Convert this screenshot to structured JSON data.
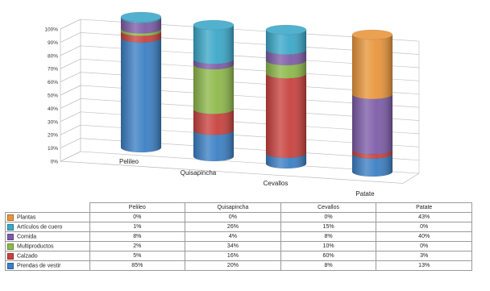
{
  "chart_data": {
    "type": "bar",
    "stacked": true,
    "percent_stacked": true,
    "three_d": "cylinder",
    "categories": [
      "Pelileo",
      "Quisapincha",
      "Cevallos",
      "Patate"
    ],
    "series": [
      {
        "name": "Prendas de vestir",
        "color": "#3b7fc4",
        "values": [
          85,
          20,
          8,
          13
        ]
      },
      {
        "name": "Calzado",
        "color": "#c8413d",
        "values": [
          5,
          16,
          60,
          3
        ]
      },
      {
        "name": "Multiproductos",
        "color": "#8db84a",
        "values": [
          2,
          34,
          10,
          0
        ]
      },
      {
        "name": "Comida",
        "color": "#7d5ca8",
        "values": [
          8,
          4,
          8,
          40
        ]
      },
      {
        "name": "Artículos de cuero",
        "color": "#3aa7c8",
        "values": [
          1,
          26,
          15,
          0
        ]
      },
      {
        "name": "Plantas",
        "color": "#e8953a",
        "values": [
          0,
          0,
          0,
          43
        ]
      }
    ],
    "table_rows": [
      {
        "label": "Plantas",
        "cells": [
          "0%",
          "0%",
          "0%",
          "43%"
        ]
      },
      {
        "label": "Artículos de cuero",
        "cells": [
          "1%",
          "26%",
          "15%",
          "0%"
        ]
      },
      {
        "label": "Comida",
        "cells": [
          "8%",
          "4%",
          "8%",
          "40%"
        ]
      },
      {
        "label": "Multiproductos",
        "cells": [
          "2%",
          "34%",
          "10%",
          "0%"
        ]
      },
      {
        "label": "Calzado",
        "cells": [
          "5%",
          "16%",
          "60%",
          "3%"
        ]
      },
      {
        "label": "Prendas de vestir",
        "cells": [
          "85%",
          "20%",
          "8%",
          "13%"
        ]
      }
    ],
    "yticks": [
      "0%",
      "10%",
      "20%",
      "30%",
      "40%",
      "50%",
      "60%",
      "70%",
      "80%",
      "90%",
      "100%"
    ],
    "ylim": [
      0,
      100
    ],
    "grid": true,
    "legend": "data table below chart",
    "title": "",
    "xlabel": "",
    "ylabel": ""
  }
}
